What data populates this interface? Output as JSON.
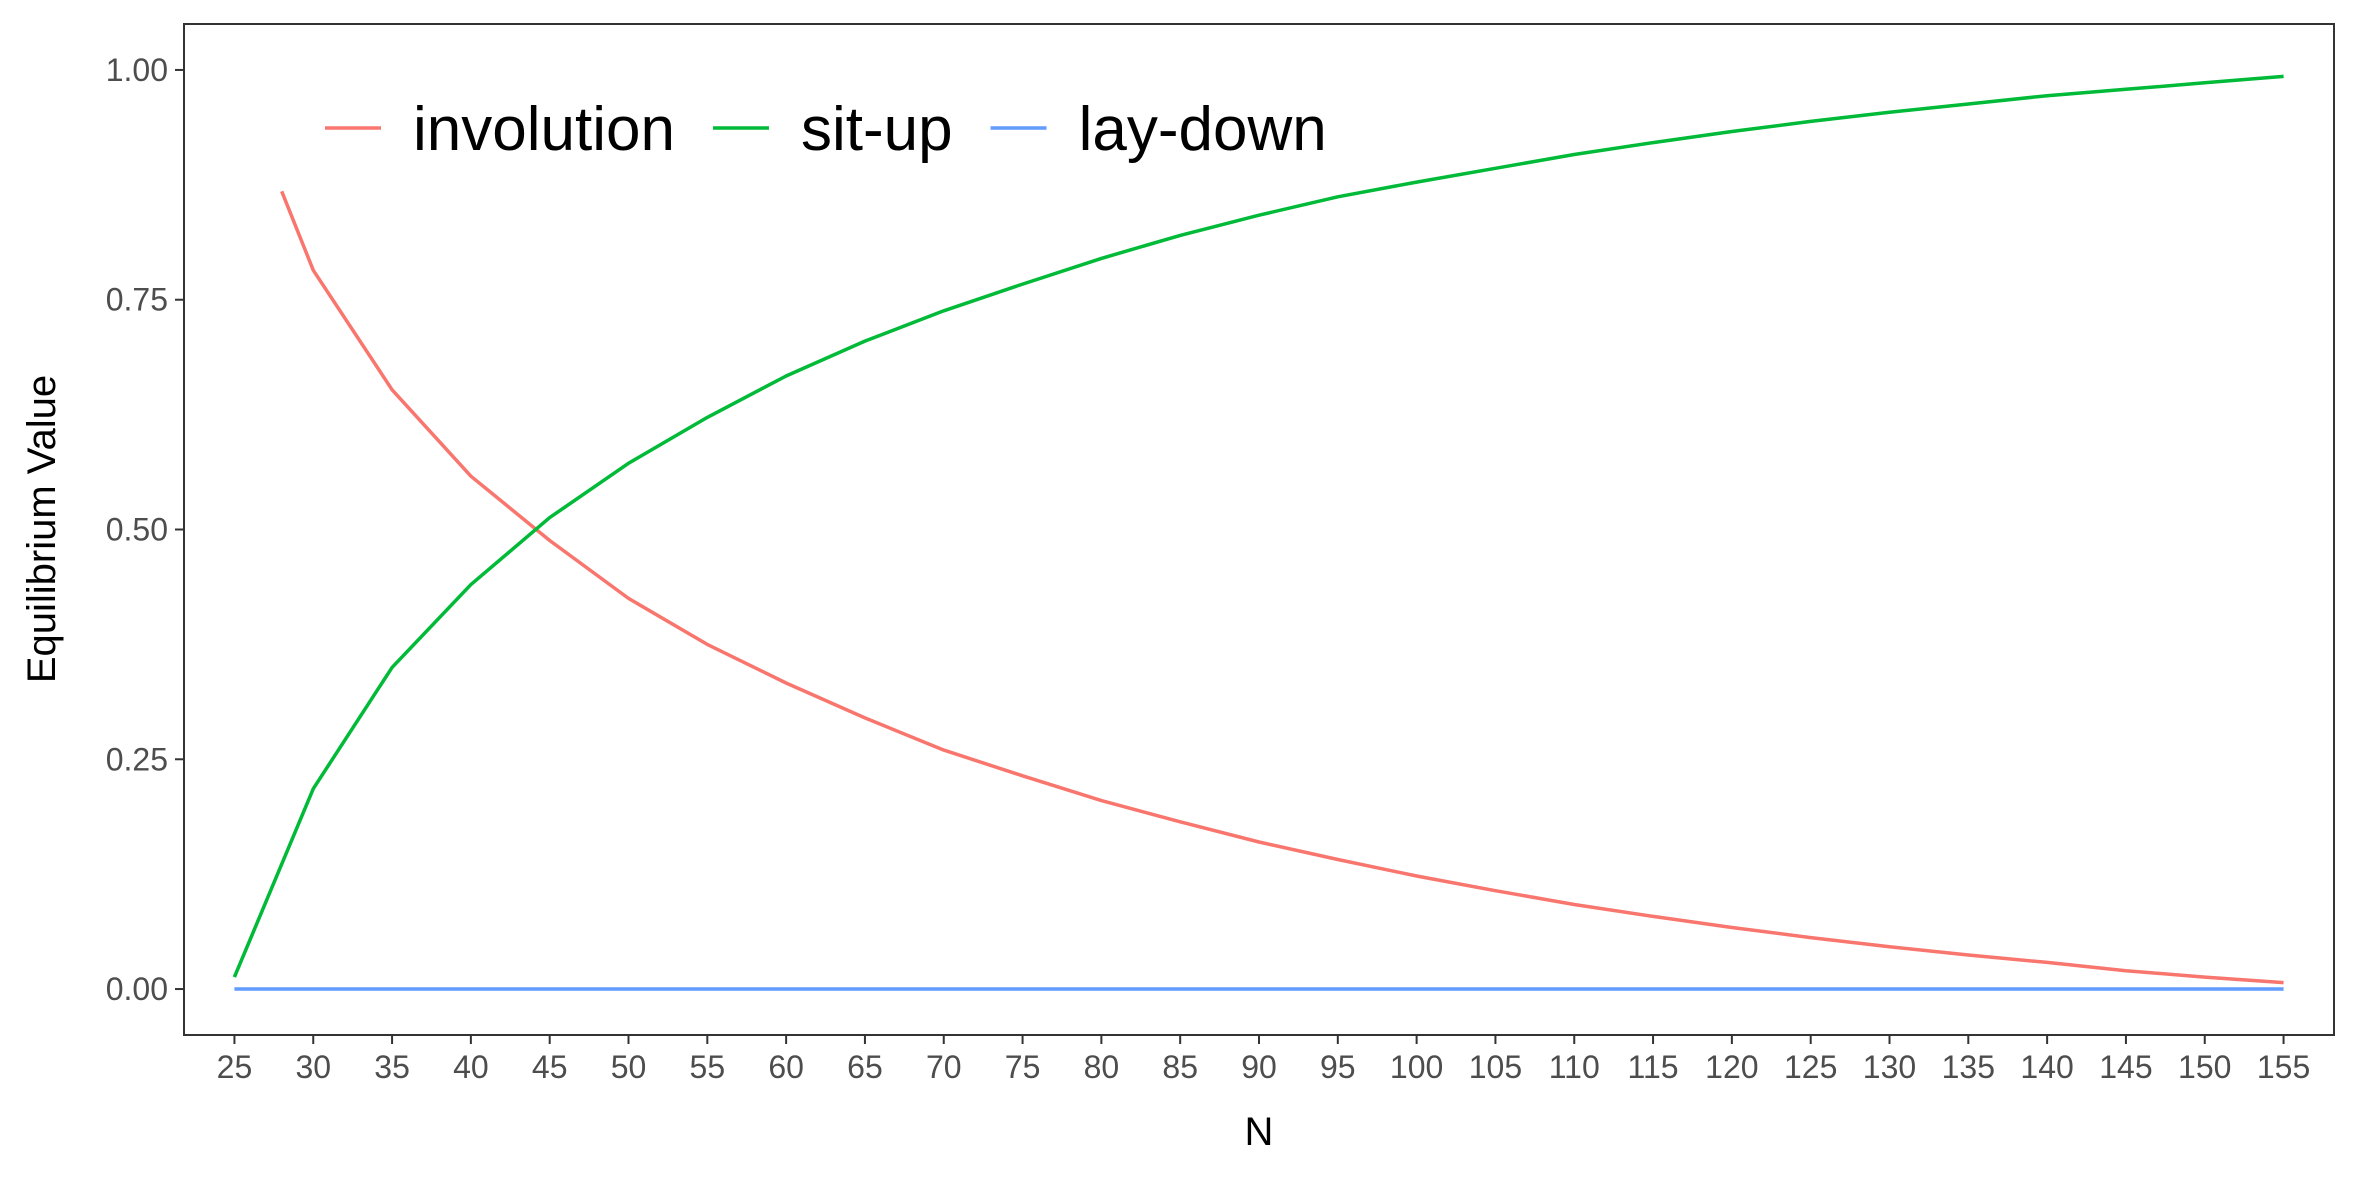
{
  "chart_data": {
    "type": "line",
    "title": "",
    "xlabel": "N",
    "ylabel": "Equilibrium Value",
    "xlim": [
      21.8,
      158.2
    ],
    "ylim": [
      -0.05,
      1.05
    ],
    "x_ticks": [
      25,
      30,
      35,
      40,
      45,
      50,
      55,
      60,
      65,
      70,
      75,
      80,
      85,
      90,
      95,
      100,
      105,
      110,
      115,
      120,
      125,
      130,
      135,
      140,
      145,
      150,
      155
    ],
    "x_tick_labels": [
      "25",
      "30",
      "35",
      "40",
      "45",
      "50",
      "55",
      "60",
      "65",
      "70",
      "75",
      "80",
      "85",
      "90",
      "95",
      "100",
      "105",
      "110",
      "115",
      "120",
      "125",
      "130",
      "135",
      "140",
      "145",
      "150",
      "155"
    ],
    "y_ticks": [
      0,
      0.25,
      0.5,
      0.75,
      1.0
    ],
    "y_tick_labels": [
      "0.00",
      "0.25",
      "0.50",
      "0.75",
      "1.00"
    ],
    "grid": false,
    "legend_position": "top-left",
    "series": [
      {
        "name": "involution",
        "color": "#F8766D",
        "x": [
          28,
          30,
          35,
          40,
          45,
          50,
          55,
          60,
          65,
          70,
          75,
          80,
          85,
          90,
          95,
          100,
          105,
          110,
          115,
          120,
          125,
          130,
          135,
          140,
          145,
          150,
          155
        ],
        "y": [
          0.868,
          0.782,
          0.652,
          0.558,
          0.488,
          0.425,
          0.375,
          0.333,
          0.295,
          0.26,
          0.232,
          0.205,
          0.182,
          0.16,
          0.141,
          0.123,
          0.107,
          0.092,
          0.079,
          0.067,
          0.056,
          0.046,
          0.037,
          0.029,
          0.02,
          0.013,
          0.007
        ]
      },
      {
        "name": "sit-up",
        "color": "#00BA38",
        "x": [
          25,
          30,
          35,
          40,
          45,
          50,
          55,
          60,
          65,
          70,
          75,
          80,
          85,
          90,
          95,
          100,
          105,
          110,
          115,
          120,
          125,
          130,
          135,
          140,
          145,
          150,
          155
        ],
        "y": [
          0.013,
          0.218,
          0.35,
          0.44,
          0.513,
          0.572,
          0.622,
          0.667,
          0.705,
          0.738,
          0.767,
          0.795,
          0.82,
          0.842,
          0.862,
          0.878,
          0.893,
          0.908,
          0.921,
          0.933,
          0.944,
          0.954,
          0.963,
          0.972,
          0.979,
          0.986,
          0.993
        ]
      },
      {
        "name": "lay-down",
        "color": "#619CFF",
        "x": [
          25,
          155
        ],
        "y": [
          0.0,
          0.0
        ]
      }
    ]
  }
}
